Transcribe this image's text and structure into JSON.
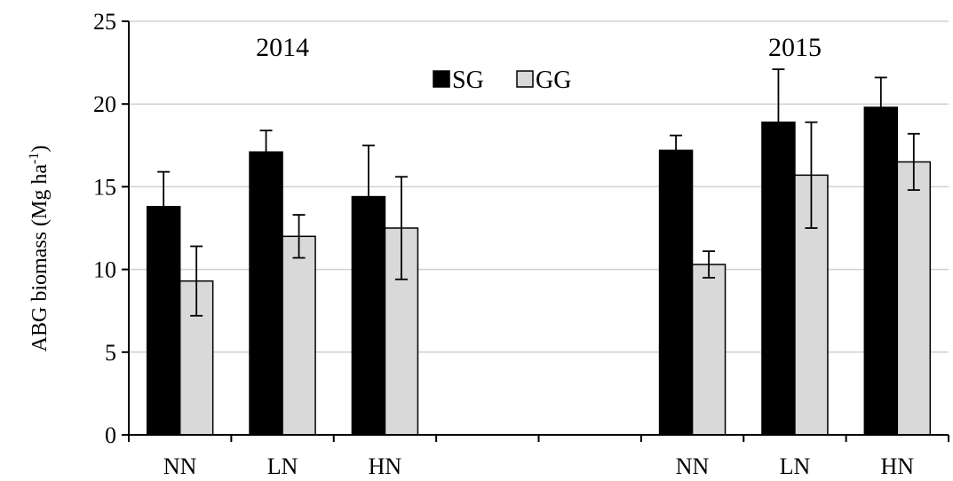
{
  "chart_data": {
    "type": "bar",
    "ylabel": "ABG biomass  (Mg ha",
    "ylabel_sup": "-1",
    "ylabel_suffix": ")",
    "ylim": [
      0,
      25
    ],
    "yticks": [
      0,
      5,
      10,
      15,
      20,
      25
    ],
    "grid": true,
    "legend_position": "top-center",
    "groups": [
      {
        "label": "2014",
        "categories": [
          "NN",
          "LN",
          "HN"
        ],
        "series": [
          {
            "name": "SG",
            "values": [
              13.8,
              17.1,
              14.4
            ],
            "errors": [
              2.1,
              1.3,
              3.1
            ]
          },
          {
            "name": "GG",
            "values": [
              9.3,
              12.0,
              12.5
            ],
            "errors": [
              2.1,
              1.3,
              3.1
            ]
          }
        ]
      },
      {
        "label": "2015",
        "categories": [
          "NN",
          "LN",
          "HN"
        ],
        "series": [
          {
            "name": "SG",
            "values": [
              17.2,
              18.9,
              19.8
            ],
            "errors": [
              0.9,
              3.2,
              1.8
            ]
          },
          {
            "name": "GG",
            "values": [
              10.3,
              15.7,
              16.5
            ],
            "errors": [
              0.8,
              3.2,
              1.7
            ]
          }
        ]
      }
    ],
    "colors": {
      "SG": "#000000",
      "GG": "#d9d9d9"
    }
  }
}
